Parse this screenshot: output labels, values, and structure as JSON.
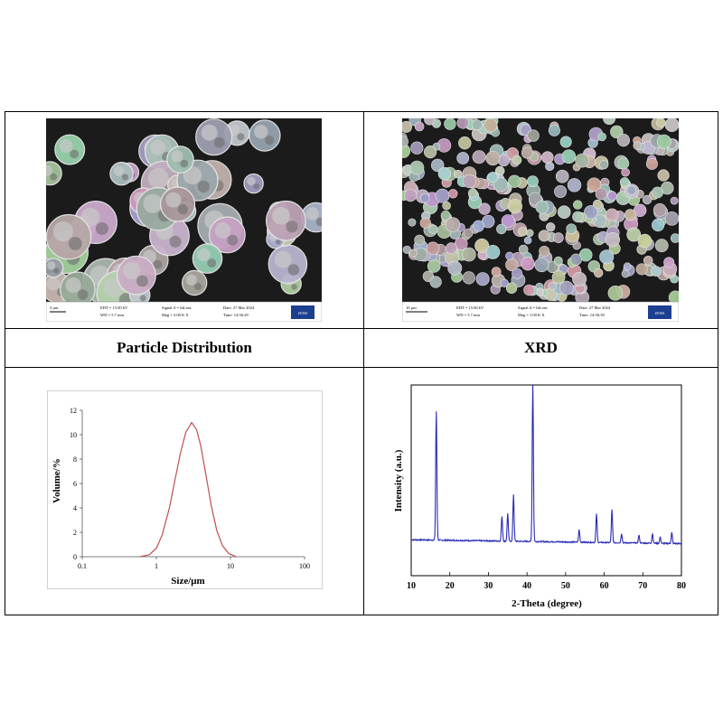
{
  "sem_left": {
    "scale_label": "3 µm",
    "col1": [
      "EHT = 15.00 kV",
      "WD = 5.7 mm"
    ],
    "col2": [
      "Signal A = InLens",
      "Mag = 3.00 K X"
    ],
    "col3": [
      "Date: 27 Mar 2024",
      "Time: 14:56:29"
    ],
    "logo": "ZEISS"
  },
  "sem_right": {
    "scale_label": "10 µm",
    "col1": [
      "EHT = 15.00 kV",
      "WD = 5.7 mm"
    ],
    "col2": [
      "Signal A = InLens",
      "Mag = 1.00 K X"
    ],
    "col3": [
      "Date: 27 Mar 2024",
      "Time: 14:56:39"
    ],
    "logo": "ZEISS"
  },
  "captions": {
    "left": "Particle Distribution",
    "right": "XRD"
  },
  "chart_data": [
    {
      "type": "line",
      "xlabel": "Size/μm",
      "ylabel": "Volume/%",
      "x_scale": "log",
      "xlim": [
        0.1,
        100
      ],
      "ylim": [
        0,
        12
      ],
      "x_ticks": [
        "0.1",
        "1",
        "10",
        "100"
      ],
      "y_ticks": [
        "0",
        "2",
        "4",
        "6",
        "8",
        "10",
        "12"
      ],
      "grid": false,
      "line_color": "#c0504d",
      "x": [
        0.6,
        0.8,
        1.0,
        1.2,
        1.5,
        1.8,
        2.1,
        2.5,
        3.0,
        3.5,
        4.0,
        4.7,
        5.5,
        6.5,
        7.8,
        9.5,
        12
      ],
      "y": [
        0.0,
        0.15,
        0.7,
        1.8,
        4.0,
        6.4,
        8.4,
        10.2,
        11.0,
        10.4,
        9.0,
        6.6,
        4.2,
        2.2,
        0.9,
        0.25,
        0.0
      ]
    },
    {
      "type": "line",
      "xlabel": "2-Theta (degree)",
      "ylabel": "Intensity (a.u.)",
      "xlim": [
        10,
        80
      ],
      "x_ticks": [
        "10",
        "20",
        "30",
        "40",
        "50",
        "60",
        "70",
        "80"
      ],
      "grid": false,
      "line_color": "#2b2bb8",
      "peaks": [
        {
          "x": 16.5,
          "height": 0.82
        },
        {
          "x": 33.5,
          "height": 0.16
        },
        {
          "x": 35.0,
          "height": 0.18
        },
        {
          "x": 36.5,
          "height": 0.3
        },
        {
          "x": 41.5,
          "height": 1.0
        },
        {
          "x": 53.5,
          "height": 0.08
        },
        {
          "x": 58.0,
          "height": 0.18
        },
        {
          "x": 62.0,
          "height": 0.21
        },
        {
          "x": 64.5,
          "height": 0.06
        },
        {
          "x": 69.0,
          "height": 0.05
        },
        {
          "x": 72.5,
          "height": 0.06
        },
        {
          "x": 74.5,
          "height": 0.04
        },
        {
          "x": 77.5,
          "height": 0.07
        }
      ]
    }
  ]
}
